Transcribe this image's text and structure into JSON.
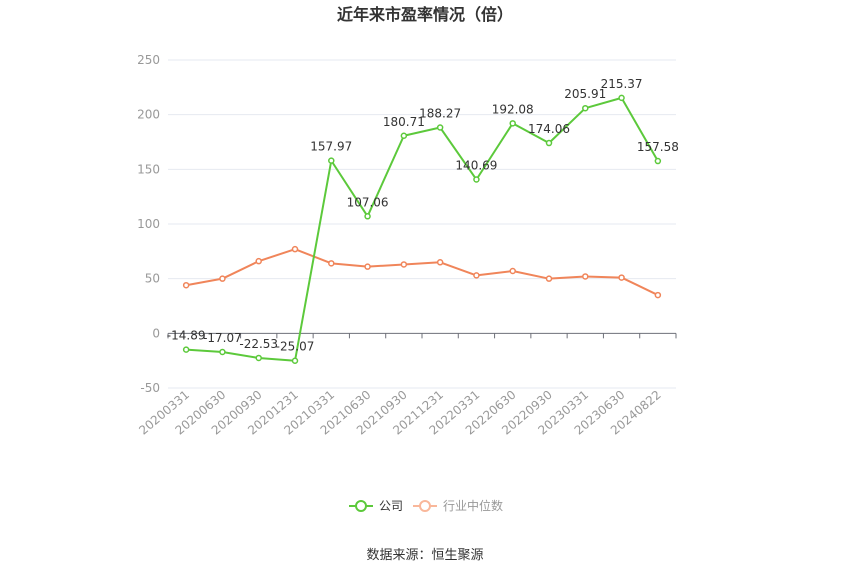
{
  "chart_data": {
    "type": "line",
    "title": "近年来市盈率情况（倍）",
    "categories": [
      "20200331",
      "20200630",
      "20200930",
      "20201231",
      "20210331",
      "20210630",
      "20210930",
      "20211231",
      "20220331",
      "20220630",
      "20220930",
      "20230331",
      "20230630",
      "20240822"
    ],
    "series": [
      {
        "name": "公司",
        "color": "#5cc93b",
        "values": [
          -14.89,
          -17.07,
          -22.53,
          -25.07,
          157.97,
          107.06,
          180.71,
          188.27,
          140.69,
          192.08,
          174.06,
          205.91,
          215.37,
          157.58
        ],
        "labels": [
          "-14.89",
          "-17.07",
          "-22.53",
          "-25.07",
          "157.97",
          "107.06",
          "180.71",
          "188.27",
          "140.69",
          "192.08",
          "174.06",
          "205.91",
          "215.37",
          "157.58"
        ]
      },
      {
        "name": "行业中位数",
        "color": "#f0855a",
        "values": [
          44,
          50,
          66,
          77,
          64,
          61,
          63,
          65,
          53,
          57,
          50,
          52,
          51,
          35
        ]
      }
    ],
    "yticks": [
      "250",
      "200",
      "150",
      "100",
      "50",
      "0",
      "-50"
    ],
    "ylim": [
      -50,
      250
    ],
    "grid": true,
    "legend_position": "bottom"
  },
  "source": "数据来源：恒生聚源"
}
